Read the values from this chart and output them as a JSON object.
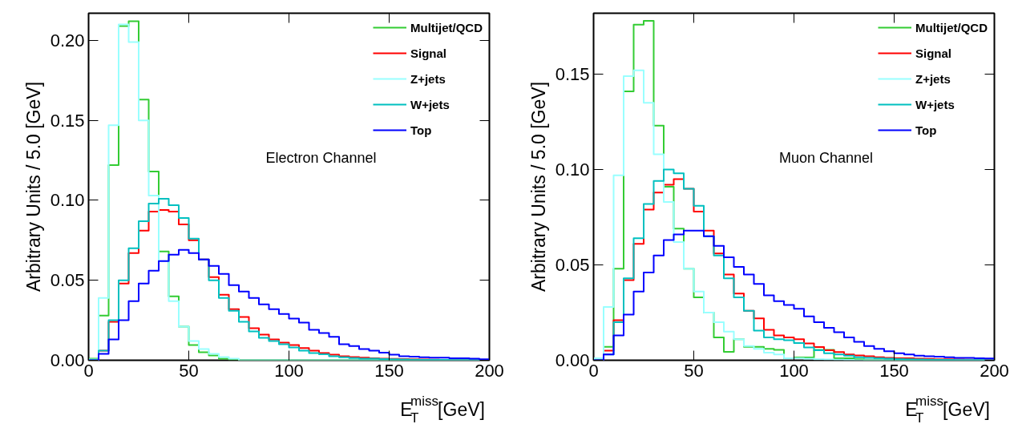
{
  "chart_data": [
    {
      "type": "histogram",
      "xlabel": "E$^{miss}$$_{T}$[GeV]",
      "ylabel": "Arbitrary Units / 5.0 [GeV]",
      "bins": [
        0,
        5,
        10,
        15,
        20,
        25,
        30,
        35,
        40,
        45,
        50,
        55,
        60,
        65,
        70,
        75,
        80,
        85,
        90,
        95,
        100,
        105,
        110,
        115,
        120,
        125,
        130,
        135,
        140,
        145,
        150,
        155,
        160,
        165,
        170,
        175,
        180,
        185,
        190,
        195,
        200
      ],
      "xlim": [
        0,
        200
      ],
      "xticks": [
        0,
        50,
        100,
        150,
        200
      ],
      "ylim": [
        0,
        0.217
      ],
      "yticks": [
        {
          "value": 0,
          "label": "0.00"
        },
        {
          "value": 0.05,
          "label": "0.05"
        },
        {
          "value": 0.1,
          "label": "0.10"
        },
        {
          "value": 0.15,
          "label": "0.15"
        },
        {
          "value": 0.2,
          "label": "0.20"
        }
      ],
      "grid": false,
      "legend": "top right",
      "annotations": [
        "Electron Channel"
      ],
      "series": [
        {
          "name": "Multijet/QCD",
          "color": "#33cc33",
          "values": [
            0.001,
            0.028,
            0.122,
            0.209,
            0.212,
            0.163,
            0.118,
            0.068,
            0.04,
            0.021,
            0.0095,
            0.005,
            0.003,
            0.001,
            0.0005,
            0,
            0,
            0,
            0,
            0,
            0,
            0,
            0,
            0,
            0,
            0,
            0,
            0,
            0,
            0,
            0,
            0,
            0,
            0,
            0,
            0,
            0,
            0,
            0,
            0
          ]
        },
        {
          "name": "Signal",
          "color": "#ff0000",
          "values": [
            0,
            0.006,
            0.024,
            0.048,
            0.067,
            0.081,
            0.093,
            0.094,
            0.093,
            0.085,
            0.075,
            0.063,
            0.052,
            0.041,
            0.032,
            0.027,
            0.02,
            0.016,
            0.013,
            0.011,
            0.0095,
            0.0076,
            0.006,
            0.0045,
            0.0035,
            0.0025,
            0.002,
            0.0016,
            0.0013,
            0.001,
            0.0009,
            0.0007,
            0.0006,
            0.0005,
            0.0004,
            0.0003,
            0.0003,
            0.0002,
            0.0002,
            0.0001
          ]
        },
        {
          "name": "Z+jets",
          "color": "#99ffff",
          "values": [
            0.0005,
            0.039,
            0.147,
            0.21,
            0.199,
            0.15,
            0.103,
            0.062,
            0.037,
            0.021,
            0.012,
            0.007,
            0.004,
            0.002,
            0.001,
            0,
            0,
            0,
            0,
            0,
            0,
            0,
            0,
            0,
            0,
            0,
            0,
            0,
            0,
            0,
            0,
            0,
            0,
            0,
            0,
            0,
            0,
            0,
            0,
            0
          ]
        },
        {
          "name": "W+jets",
          "color": "#00c0c0",
          "values": [
            0,
            0.006,
            0.025,
            0.05,
            0.07,
            0.087,
            0.098,
            0.101,
            0.097,
            0.089,
            0.076,
            0.063,
            0.05,
            0.039,
            0.031,
            0.024,
            0.018,
            0.014,
            0.012,
            0.01,
            0.008,
            0.006,
            0.0045,
            0.0037,
            0.0025,
            0.0019,
            0.0014,
            0.001,
            0.001,
            0.0008,
            0.0006,
            0.0005,
            0.0004,
            0.0003,
            0.0002,
            0.0002,
            0.0001,
            0.0001,
            0.0001,
            0.0001
          ]
        },
        {
          "name": "Top",
          "color": "#0000ff",
          "values": [
            0,
            0.004,
            0.013,
            0.025,
            0.037,
            0.048,
            0.056,
            0.062,
            0.066,
            0.069,
            0.067,
            0.063,
            0.059,
            0.054,
            0.047,
            0.043,
            0.039,
            0.035,
            0.032,
            0.029,
            0.026,
            0.0235,
            0.019,
            0.017,
            0.0146,
            0.01,
            0.0089,
            0.007,
            0.006,
            0.0048,
            0.0035,
            0.0025,
            0.0022,
            0.0019,
            0.0016,
            0.0016,
            0.0013,
            0.0013,
            0.001,
            0.0006
          ]
        }
      ]
    },
    {
      "type": "histogram",
      "xlabel": "E$^{miss}$$_{T}$[GeV]",
      "ylabel": "Arbitrary Units / 5.0 [GeV]",
      "bins": [
        0,
        5,
        10,
        15,
        20,
        25,
        30,
        35,
        40,
        45,
        50,
        55,
        60,
        65,
        70,
        75,
        80,
        85,
        90,
        95,
        100,
        105,
        110,
        115,
        120,
        125,
        130,
        135,
        140,
        145,
        150,
        155,
        160,
        165,
        170,
        175,
        180,
        185,
        190,
        195,
        200
      ],
      "xlim": [
        0,
        200
      ],
      "xticks": [
        0,
        50,
        100,
        150,
        200
      ],
      "ylim": [
        0,
        0.182
      ],
      "yticks": [
        {
          "value": 0,
          "label": "0.00"
        },
        {
          "value": 0.05,
          "label": "0.05"
        },
        {
          "value": 0.1,
          "label": "0.10"
        },
        {
          "value": 0.15,
          "label": "0.15"
        }
      ],
      "grid": false,
      "legend": "top right",
      "annotations": [
        "Muon Channel"
      ],
      "series": [
        {
          "name": "Multijet/QCD",
          "color": "#33cc33",
          "values": [
            0.001,
            0.007,
            0.048,
            0.141,
            0.176,
            0.178,
            0.123,
            0.091,
            0.069,
            0.048,
            0.033,
            0.025,
            0.012,
            0.0044,
            0.011,
            0.007,
            0.007,
            0.006,
            0.0055,
            0.001,
            0.0015,
            0.0015,
            0.0055,
            0.0055,
            0.001,
            0.001,
            0.0005,
            0,
            0,
            0,
            0,
            0,
            0,
            0,
            0,
            0,
            0,
            0,
            0,
            0
          ]
        },
        {
          "name": "Signal",
          "color": "#ff0000",
          "values": [
            0,
            0.005,
            0.021,
            0.042,
            0.061,
            0.079,
            0.088,
            0.092,
            0.095,
            0.09,
            0.078,
            0.068,
            0.056,
            0.045,
            0.035,
            0.026,
            0.022,
            0.016,
            0.013,
            0.012,
            0.011,
            0.0088,
            0.0069,
            0.0053,
            0.0043,
            0.003,
            0.0025,
            0.0021,
            0.0016,
            0.0013,
            0.0011,
            0.001,
            0.0008,
            0.0007,
            0.0005,
            0.0005,
            0.0004,
            0.0003,
            0.0003,
            0.0002
          ]
        },
        {
          "name": "Z+jets",
          "color": "#99ffff",
          "values": [
            0.001,
            0.028,
            0.097,
            0.149,
            0.152,
            0.135,
            0.108,
            0.083,
            0.062,
            0.048,
            0.036,
            0.025,
            0.02,
            0.015,
            0.011,
            0.0075,
            0.006,
            0.004,
            0.003,
            0.001,
            0.001,
            0.0008,
            0.0005,
            0.0004,
            0.0003,
            0.0002,
            0,
            0,
            0,
            0,
            0,
            0,
            0,
            0,
            0,
            0,
            0,
            0,
            0,
            0
          ]
        },
        {
          "name": "W+jets",
          "color": "#00c0c0",
          "values": [
            0,
            0.003,
            0.02,
            0.043,
            0.064,
            0.082,
            0.094,
            0.1,
            0.098,
            0.09,
            0.081,
            0.065,
            0.055,
            0.043,
            0.033,
            0.026,
            0.0155,
            0.012,
            0.011,
            0.0105,
            0.009,
            0.0067,
            0.0053,
            0.0037,
            0.003,
            0.0024,
            0.0016,
            0.0013,
            0.001,
            0.0008,
            0.0006,
            0.0005,
            0.0004,
            0.0003,
            0.0002,
            0.0002,
            0.0001,
            0.0001,
            0.0001,
            0
          ]
        },
        {
          "name": "Top",
          "color": "#0000ff",
          "values": [
            0,
            0.003,
            0.013,
            0.024,
            0.036,
            0.046,
            0.055,
            0.063,
            0.066,
            0.068,
            0.068,
            0.065,
            0.06,
            0.054,
            0.049,
            0.045,
            0.04,
            0.034,
            0.031,
            0.029,
            0.027,
            0.023,
            0.02,
            0.017,
            0.0147,
            0.012,
            0.0097,
            0.0075,
            0.006,
            0.0047,
            0.0037,
            0.003,
            0.0024,
            0.0021,
            0.0019,
            0.0016,
            0.0013,
            0.0013,
            0.001,
            0.0009
          ]
        }
      ]
    }
  ]
}
